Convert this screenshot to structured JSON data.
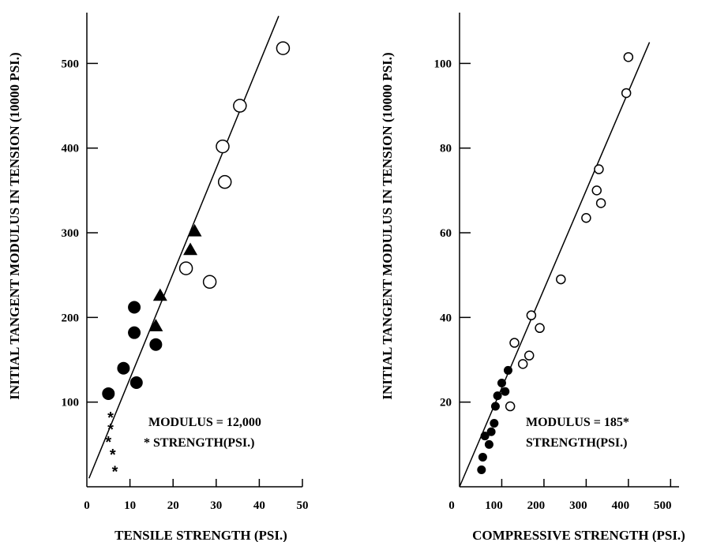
{
  "chart_data": [
    {
      "type": "scatter",
      "xlabel": "TENSILE STRENGTH (PSI.)",
      "ylabel": "INITIAL TANGENT MODULUS IN TENSION (10000 PSI.)",
      "xlim": [
        0,
        50
      ],
      "ylim": [
        0,
        560
      ],
      "xticks": [
        "0",
        "10",
        "20",
        "30",
        "40",
        "50"
      ],
      "yticks": [
        "100",
        "200",
        "300",
        "400",
        "500"
      ],
      "ytick_values": [
        100,
        200,
        300,
        400,
        500
      ],
      "xtick_values": [
        0,
        10,
        20,
        30,
        40,
        50
      ],
      "annotation": [
        "MODULUS = 12,000",
        "* STRENGTH(PSI.)"
      ],
      "fit_line": {
        "x": [
          0.5,
          44.5
        ],
        "y": [
          10,
          556
        ]
      },
      "series": [
        {
          "marker": "star",
          "x": [
            5.5,
            5.5,
            5.0,
            6.0,
            6.5
          ],
          "y": [
            84,
            70,
            55,
            40,
            20
          ]
        },
        {
          "marker": "filled-circle",
          "x": [
            5,
            8.5,
            11.5,
            11,
            11,
            16
          ],
          "y": [
            110,
            140,
            123,
            212,
            182,
            168
          ]
        },
        {
          "marker": "filled-triangle",
          "x": [
            16,
            17,
            24,
            25
          ],
          "y": [
            190,
            226,
            280,
            302
          ]
        },
        {
          "marker": "open-circle",
          "x": [
            23,
            28.5,
            32,
            31.5,
            35.5,
            45.5
          ],
          "y": [
            258,
            242,
            360,
            402,
            450,
            518
          ]
        }
      ]
    },
    {
      "type": "scatter",
      "xlabel": "COMPRESSIVE STRENGTH (PSI.)",
      "ylabel": "INITIAL TANGENT MODULUS IN TENSION (10000 PSI.)",
      "xlim": [
        0,
        520
      ],
      "ylim": [
        0,
        112
      ],
      "xticks": [
        "0",
        "100",
        "200",
        "300",
        "400",
        "500"
      ],
      "yticks": [
        "20",
        "40",
        "60",
        "80",
        "100"
      ],
      "ytick_values": [
        20,
        40,
        60,
        80,
        100
      ],
      "xtick_values": [
        0,
        100,
        200,
        300,
        400,
        500
      ],
      "annotation": [
        "MODULUS = 185*",
        "STRENGTH(PSI.)"
      ],
      "fit_line": {
        "x": [
          0,
          450
        ],
        "y": [
          0,
          105
        ]
      },
      "series": [
        {
          "marker": "filled-circle",
          "x": [
            52,
            55,
            60,
            70,
            75,
            82,
            85,
            90,
            100,
            108,
            115
          ],
          "y": [
            4,
            7,
            12,
            10,
            13,
            15,
            19,
            21.5,
            24.5,
            22.5,
            27.5
          ]
        },
        {
          "marker": "open-circle",
          "x": [
            120,
            130,
            150,
            165,
            170,
            190,
            240,
            300,
            325,
            330,
            335,
            395,
            400
          ],
          "y": [
            19,
            34,
            29,
            31,
            40.5,
            37.5,
            49,
            63.5,
            70,
            75,
            67,
            93,
            101.5
          ]
        }
      ]
    }
  ]
}
